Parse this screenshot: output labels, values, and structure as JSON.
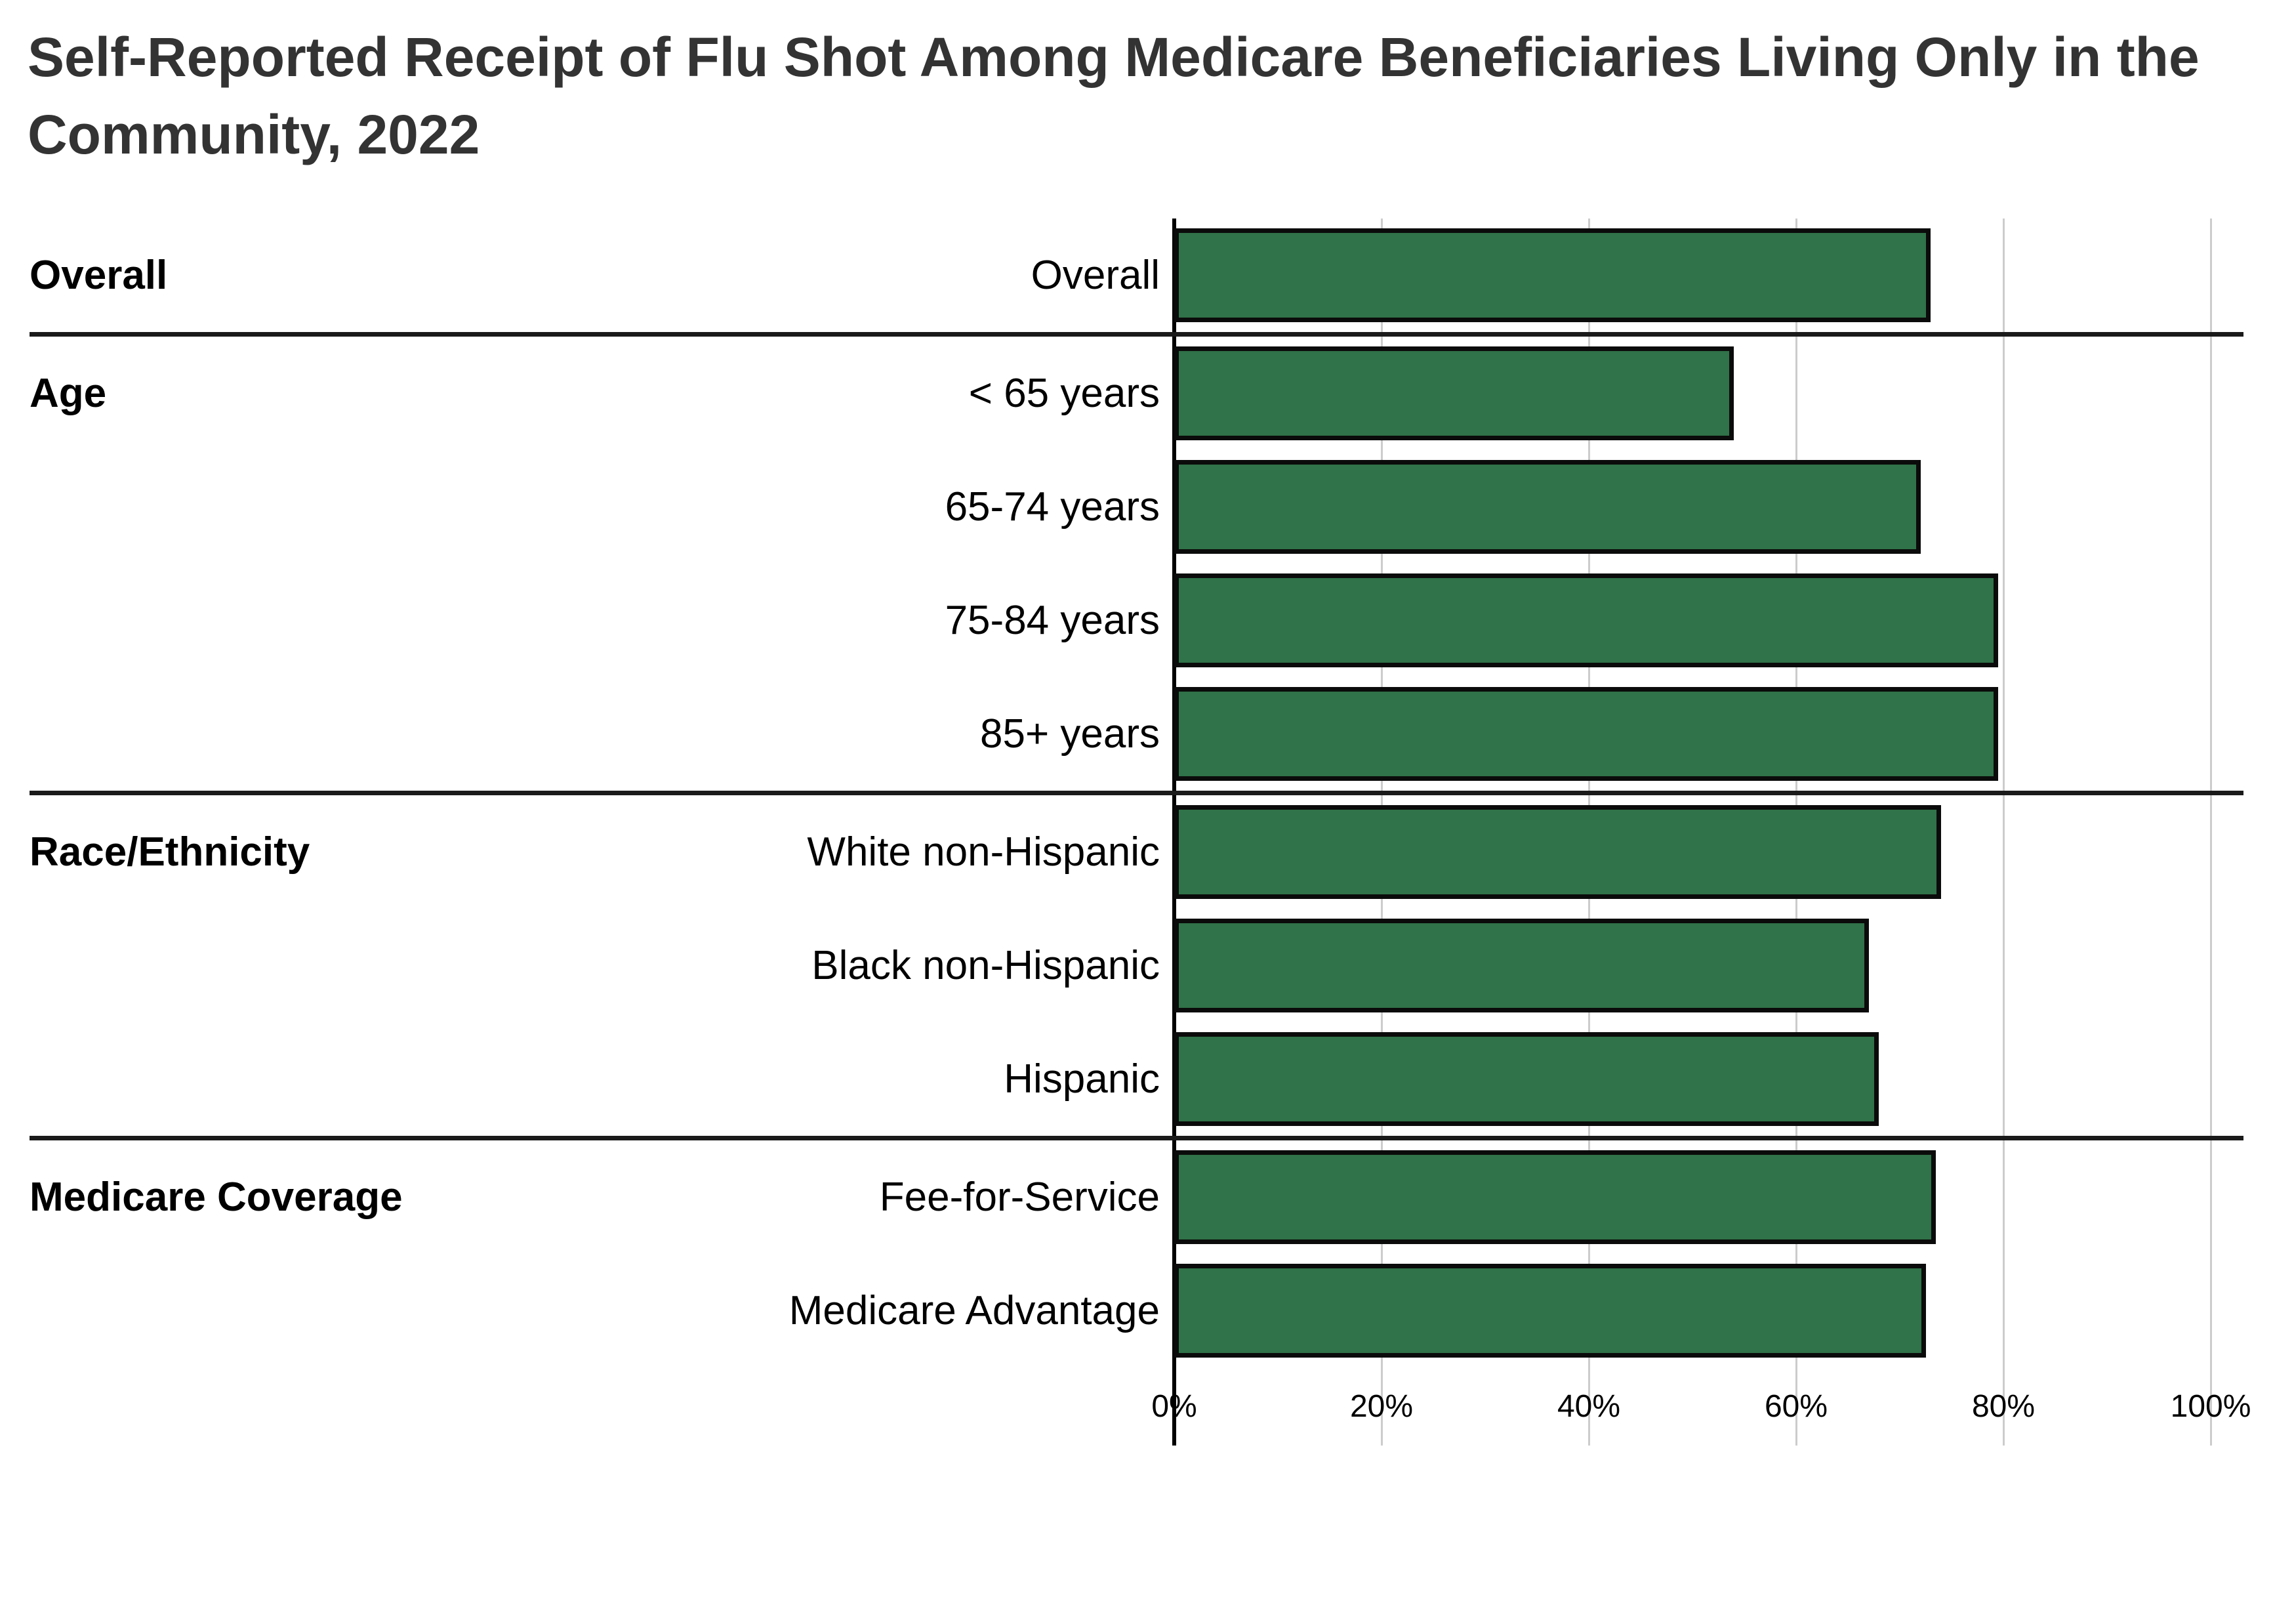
{
  "title": {
    "line1": "Self-Reported Receipt of Flu Shot Among Medicare Beneficiaries Living Only in the",
    "line2": "Community, 2022"
  },
  "chart_data": {
    "type": "bar",
    "orientation": "horizontal",
    "unit": "percent",
    "title": "Self-Reported Receipt of Flu Shot Among Medicare Beneficiaries Living Only in the Community, 2022",
    "x_axis": {
      "min": 0,
      "max": 100,
      "tick_values": [
        0,
        20,
        40,
        60,
        80,
        100
      ],
      "tick_labels": [
        "0%",
        "20%",
        "40%",
        "60%",
        "80%",
        "100%"
      ],
      "grid": true
    },
    "groups": [
      {
        "label": "Overall",
        "items": [
          {
            "label": "Overall",
            "value": 73
          }
        ]
      },
      {
        "label": "Age",
        "items": [
          {
            "label": "< 65 years",
            "value": 54
          },
          {
            "label": "65-74 years",
            "value": 72
          },
          {
            "label": "75-84 years",
            "value": 79.5
          },
          {
            "label": "85+ years",
            "value": 79.5
          }
        ]
      },
      {
        "label": "Race/Ethnicity",
        "items": [
          {
            "label": "White non-Hispanic",
            "value": 74
          },
          {
            "label": "Black non-Hispanic",
            "value": 67
          },
          {
            "label": "Hispanic",
            "value": 68
          }
        ]
      },
      {
        "label": "Medicare Coverage",
        "items": [
          {
            "label": "Fee-for-Service",
            "value": 73.5
          },
          {
            "label": "Medicare Advantage",
            "value": 72.5
          }
        ]
      }
    ],
    "colors": {
      "bar_fill": "#307249",
      "bar_border": "#0b0b0b",
      "gridline": "#cccccc",
      "axis_line": "#000000",
      "group_divider": "#1a1a1a",
      "title_text": "#333333",
      "label_text": "#000000"
    },
    "legend": "none"
  }
}
